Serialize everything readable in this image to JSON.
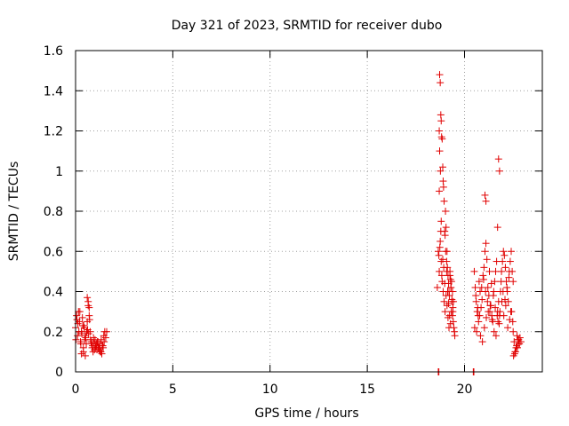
{
  "chart_data": {
    "type": "scatter",
    "title": "Day 321 of 2023, SRMTID for receiver dubo",
    "xlabel": "GPS time / hours",
    "ylabel": "SRMTID / TECUs",
    "xlim": [
      0,
      24
    ],
    "ylim": [
      0,
      1.6
    ],
    "xticks": [
      0,
      5,
      10,
      15,
      20
    ],
    "xtick_labels": [
      "0",
      "5",
      "10",
      "15",
      "20"
    ],
    "yticks": [
      0,
      0.2,
      0.4,
      0.6,
      0.8,
      1.0,
      1.2,
      1.4,
      1.6
    ],
    "ytick_labels": [
      "0",
      "0.2",
      "0.4",
      "0.6",
      "0.8",
      "1",
      "1.2",
      "1.4",
      "1.6"
    ],
    "grid": true,
    "marker": "+",
    "color": "#e00000",
    "series": [
      {
        "name": "SRMTID",
        "x": [
          0.0,
          0.05,
          0.1,
          0.15,
          0.2,
          0.25,
          0.3,
          0.35,
          0.4,
          0.45,
          0.5,
          0.55,
          0.6,
          0.65,
          0.7,
          0.75,
          0.8,
          0.85,
          0.9,
          0.95,
          1.0,
          1.05,
          1.1,
          1.15,
          1.2,
          1.25,
          1.3,
          1.35,
          1.4,
          1.45,
          1.5,
          0.02,
          0.12,
          0.22,
          0.32,
          0.42,
          0.52,
          0.62,
          0.72,
          0.82,
          0.92,
          1.02,
          1.12,
          1.22,
          1.32,
          1.42,
          0.07,
          0.17,
          0.27,
          0.37,
          0.47,
          0.57,
          0.67,
          0.77,
          0.87,
          0.97,
          1.07,
          1.17,
          1.27,
          1.37,
          1.47,
          0.6,
          0.65,
          0.7,
          0.3,
          0.4,
          0.5,
          1.55,
          1.6,
          18.6,
          18.65,
          18.7,
          18.72,
          18.75,
          18.78,
          18.8,
          18.82,
          18.85,
          18.88,
          18.9,
          18.92,
          18.95,
          18.98,
          19.0,
          19.02,
          19.05,
          19.08,
          19.1,
          19.12,
          19.15,
          19.18,
          19.2,
          19.22,
          19.25,
          19.28,
          19.3,
          19.32,
          19.35,
          19.38,
          19.4,
          19.42,
          19.45,
          19.48,
          19.5,
          18.7,
          18.75,
          18.8,
          18.85,
          18.9,
          18.95,
          19.0,
          19.05,
          19.1,
          19.15,
          19.2,
          19.25,
          19.3,
          19.35,
          19.4,
          18.68,
          18.73,
          18.78,
          18.83,
          18.88,
          18.93,
          18.98,
          19.03,
          19.08,
          19.13,
          19.18,
          19.23,
          19.28,
          19.33,
          19.38,
          19.43,
          18.7,
          18.72,
          18.76,
          18.8,
          20.5,
          20.55,
          20.6,
          20.65,
          20.7,
          20.75,
          20.8,
          20.85,
          20.9,
          20.95,
          21.0,
          21.05,
          21.1,
          21.15,
          21.2,
          21.25,
          21.3,
          21.35,
          21.4,
          21.45,
          21.5,
          21.55,
          21.6,
          21.65,
          21.7,
          21.75,
          21.8,
          21.85,
          21.9,
          21.95,
          22.0,
          22.05,
          22.1,
          22.15,
          22.2,
          22.25,
          22.3,
          22.35,
          22.4,
          22.45,
          22.5,
          20.52,
          20.62,
          20.72,
          20.82,
          20.92,
          21.02,
          21.12,
          21.22,
          21.32,
          21.42,
          21.52,
          21.62,
          21.72,
          21.82,
          21.92,
          22.02,
          22.12,
          22.22,
          22.32,
          22.42,
          20.58,
          20.68,
          20.78,
          20.88,
          20.98,
          21.08,
          21.18,
          21.28,
          21.38,
          21.48,
          21.58,
          21.68,
          21.78,
          21.88,
          21.98,
          22.08,
          22.18,
          22.28,
          22.38,
          22.48,
          21.75,
          21.8,
          21.7,
          21.05,
          21.1,
          22.5,
          22.55,
          22.6,
          22.65,
          22.7,
          22.75,
          22.8,
          22.85,
          22.9,
          22.52,
          22.62,
          22.72,
          22.82,
          22.58,
          22.68,
          22.78,
          18.65,
          18.68,
          20.45,
          20.48
        ],
        "y": [
          0.22,
          0.28,
          0.18,
          0.3,
          0.25,
          0.15,
          0.2,
          0.27,
          0.12,
          0.22,
          0.18,
          0.14,
          0.25,
          0.33,
          0.28,
          0.2,
          0.15,
          0.12,
          0.1,
          0.14,
          0.16,
          0.13,
          0.11,
          0.15,
          0.12,
          0.14,
          0.1,
          0.09,
          0.13,
          0.18,
          0.2,
          0.16,
          0.24,
          0.3,
          0.19,
          0.23,
          0.17,
          0.21,
          0.26,
          0.14,
          0.17,
          0.12,
          0.15,
          0.11,
          0.16,
          0.12,
          0.26,
          0.2,
          0.14,
          0.23,
          0.16,
          0.2,
          0.19,
          0.16,
          0.13,
          0.11,
          0.14,
          0.12,
          0.1,
          0.13,
          0.15,
          0.37,
          0.35,
          0.32,
          0.09,
          0.1,
          0.08,
          0.17,
          0.2,
          0.42,
          0.6,
          0.9,
          1.48,
          1.44,
          1.28,
          1.25,
          1.17,
          1.16,
          1.02,
          0.95,
          0.92,
          0.85,
          0.7,
          0.68,
          0.8,
          0.72,
          0.55,
          0.6,
          0.52,
          0.48,
          0.44,
          0.4,
          0.38,
          0.5,
          0.46,
          0.42,
          0.3,
          0.35,
          0.28,
          0.32,
          0.25,
          0.22,
          0.2,
          0.18,
          0.5,
          0.65,
          0.55,
          0.45,
          0.4,
          0.35,
          0.3,
          0.38,
          0.33,
          0.27,
          0.22,
          0.48,
          0.42,
          0.36,
          0.3,
          0.58,
          0.62,
          0.7,
          0.48,
          0.56,
          0.52,
          0.44,
          0.6,
          0.5,
          0.4,
          0.34,
          0.28,
          0.24,
          0.45,
          0.4,
          0.35,
          1.2,
          1.1,
          1.0,
          0.75,
          0.5,
          0.42,
          0.35,
          0.3,
          0.28,
          0.45,
          0.4,
          0.32,
          0.36,
          0.48,
          0.52,
          0.6,
          0.64,
          0.56,
          0.42,
          0.38,
          0.3,
          0.33,
          0.28,
          0.25,
          0.4,
          0.45,
          0.5,
          0.55,
          0.3,
          0.35,
          0.28,
          0.4,
          0.5,
          0.55,
          0.6,
          0.58,
          0.52,
          0.45,
          0.4,
          0.35,
          0.5,
          0.55,
          0.6,
          0.5,
          0.45,
          0.22,
          0.2,
          0.25,
          0.18,
          0.15,
          0.22,
          0.27,
          0.3,
          0.33,
          0.26,
          0.2,
          0.18,
          0.25,
          0.3,
          0.35,
          0.28,
          0.33,
          0.22,
          0.26,
          0.3,
          0.38,
          0.32,
          0.28,
          0.42,
          0.46,
          0.4,
          0.35,
          0.5,
          0.44,
          0.38,
          0.32,
          0.28,
          0.24,
          0.45,
          0.4,
          0.36,
          0.42,
          0.47,
          0.3,
          0.25,
          1.06,
          1.0,
          0.72,
          0.88,
          0.85,
          0.2,
          0.15,
          0.1,
          0.12,
          0.18,
          0.16,
          0.14,
          0.17,
          0.15,
          0.08,
          0.1,
          0.12,
          0.14,
          0.09,
          0.13,
          0.16,
          0.0,
          0.0,
          0.0,
          0.0
        ]
      }
    ]
  }
}
